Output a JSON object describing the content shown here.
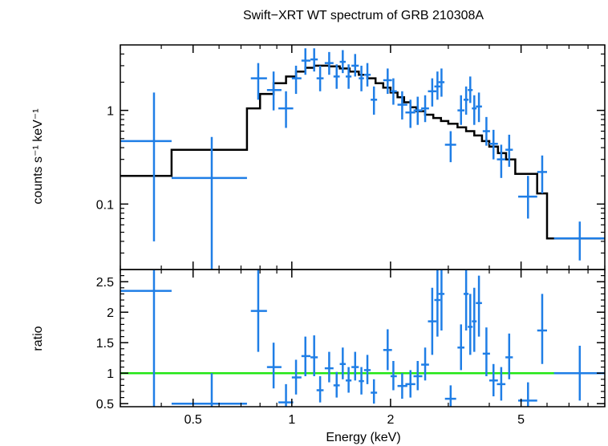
{
  "chart_data": [
    {
      "type": "scatter",
      "panel": "spectrum",
      "title": "Swift−XRT WT spectrum of GRB 210308A",
      "ylabel": "counts s⁻¹ keV⁻¹",
      "xlim": [
        0.3,
        9.0
      ],
      "ylim": [
        0.02,
        5.0
      ],
      "xscale": "log",
      "yscale": "log",
      "y_ticks": [
        0.1,
        1
      ],
      "y_tick_labels": [
        "0.1",
        "1"
      ],
      "colors": {
        "data": "#1f7ee6",
        "model": "#000000"
      },
      "series": [
        {
          "kind": "data",
          "points": [
            {
              "x": 0.38,
              "xlo": 0.3,
              "xhi": 0.43,
              "y": 0.47,
              "ylo": 0.04,
              "yhi": 1.55
            },
            {
              "x": 0.57,
              "xlo": 0.43,
              "xhi": 0.73,
              "y": 0.19,
              "ylo": 0.02,
              "yhi": 0.52
            },
            {
              "x": 0.79,
              "xlo": 0.75,
              "xhi": 0.84,
              "y": 2.2,
              "ylo": 1.3,
              "yhi": 3.2
            },
            {
              "x": 0.88,
              "xlo": 0.84,
              "xhi": 0.93,
              "y": 1.65,
              "ylo": 1.0,
              "yhi": 2.6
            },
            {
              "x": 0.96,
              "xlo": 0.91,
              "xhi": 1.01,
              "y": 1.05,
              "ylo": 0.65,
              "yhi": 1.6
            },
            {
              "x": 1.03,
              "xlo": 1.0,
              "xhi": 1.07,
              "y": 2.2,
              "ylo": 1.5,
              "yhi": 3.0
            },
            {
              "x": 1.1,
              "xlo": 1.07,
              "xhi": 1.14,
              "y": 3.4,
              "ylo": 2.4,
              "yhi": 4.6
            },
            {
              "x": 1.17,
              "xlo": 1.14,
              "xhi": 1.2,
              "y": 3.5,
              "ylo": 2.6,
              "yhi": 4.6
            },
            {
              "x": 1.22,
              "xlo": 1.19,
              "xhi": 1.25,
              "y": 2.2,
              "ylo": 1.6,
              "yhi": 3.0
            },
            {
              "x": 1.3,
              "xlo": 1.26,
              "xhi": 1.34,
              "y": 3.2,
              "ylo": 2.4,
              "yhi": 4.2
            },
            {
              "x": 1.37,
              "xlo": 1.34,
              "xhi": 1.4,
              "y": 2.3,
              "ylo": 1.7,
              "yhi": 3.1
            },
            {
              "x": 1.43,
              "xlo": 1.4,
              "xhi": 1.46,
              "y": 3.3,
              "ylo": 2.5,
              "yhi": 4.4
            },
            {
              "x": 1.49,
              "xlo": 1.46,
              "xhi": 1.52,
              "y": 2.3,
              "ylo": 1.7,
              "yhi": 3.1
            },
            {
              "x": 1.56,
              "xlo": 1.52,
              "xhi": 1.6,
              "y": 3.0,
              "ylo": 2.3,
              "yhi": 4.0
            },
            {
              "x": 1.63,
              "xlo": 1.6,
              "xhi": 1.66,
              "y": 2.2,
              "ylo": 1.6,
              "yhi": 3.0
            },
            {
              "x": 1.7,
              "xlo": 1.66,
              "xhi": 1.74,
              "y": 2.4,
              "ylo": 1.8,
              "yhi": 3.2
            },
            {
              "x": 1.78,
              "xlo": 1.74,
              "xhi": 1.82,
              "y": 1.3,
              "ylo": 0.9,
              "yhi": 1.8
            },
            {
              "x": 1.96,
              "xlo": 1.9,
              "xhi": 2.02,
              "y": 2.1,
              "ylo": 1.5,
              "yhi": 2.8
            },
            {
              "x": 2.04,
              "xlo": 2.0,
              "xhi": 2.09,
              "y": 1.6,
              "ylo": 1.15,
              "yhi": 2.2
            },
            {
              "x": 2.17,
              "xlo": 2.1,
              "xhi": 2.25,
              "y": 1.15,
              "ylo": 0.8,
              "yhi": 1.6
            },
            {
              "x": 2.3,
              "xlo": 2.22,
              "xhi": 2.38,
              "y": 0.95,
              "ylo": 0.65,
              "yhi": 1.3
            },
            {
              "x": 2.42,
              "xlo": 2.35,
              "xhi": 2.5,
              "y": 1.0,
              "ylo": 0.7,
              "yhi": 1.4
            },
            {
              "x": 2.55,
              "xlo": 2.48,
              "xhi": 2.62,
              "y": 1.05,
              "ylo": 0.75,
              "yhi": 1.45
            },
            {
              "x": 2.68,
              "xlo": 2.6,
              "xhi": 2.76,
              "y": 1.6,
              "ylo": 1.1,
              "yhi": 2.2
            },
            {
              "x": 2.78,
              "xlo": 2.72,
              "xhi": 2.84,
              "y": 1.8,
              "ylo": 1.3,
              "yhi": 2.6
            },
            {
              "x": 2.86,
              "xlo": 2.8,
              "xhi": 2.92,
              "y": 2.0,
              "ylo": 1.4,
              "yhi": 2.8
            },
            {
              "x": 3.05,
              "xlo": 2.93,
              "xhi": 3.17,
              "y": 0.43,
              "ylo": 0.28,
              "yhi": 0.6
            },
            {
              "x": 3.28,
              "xlo": 3.2,
              "xhi": 3.36,
              "y": 1.0,
              "ylo": 0.7,
              "yhi": 1.45
            },
            {
              "x": 3.4,
              "xlo": 3.34,
              "xhi": 3.46,
              "y": 1.3,
              "ylo": 0.9,
              "yhi": 1.8
            },
            {
              "x": 3.5,
              "xlo": 3.44,
              "xhi": 3.56,
              "y": 1.65,
              "ylo": 1.2,
              "yhi": 2.3
            },
            {
              "x": 3.6,
              "xlo": 3.54,
              "xhi": 3.66,
              "y": 1.05,
              "ylo": 0.7,
              "yhi": 1.45
            },
            {
              "x": 3.72,
              "xlo": 3.64,
              "xhi": 3.8,
              "y": 1.1,
              "ylo": 0.75,
              "yhi": 1.55
            },
            {
              "x": 3.92,
              "xlo": 3.82,
              "xhi": 4.02,
              "y": 0.6,
              "ylo": 0.42,
              "yhi": 0.85
            },
            {
              "x": 4.12,
              "xlo": 4.0,
              "xhi": 4.25,
              "y": 0.44,
              "ylo": 0.3,
              "yhi": 0.62
            },
            {
              "x": 4.35,
              "xlo": 4.22,
              "xhi": 4.48,
              "y": 0.3,
              "ylo": 0.19,
              "yhi": 0.43
            },
            {
              "x": 4.6,
              "xlo": 4.48,
              "xhi": 4.72,
              "y": 0.38,
              "ylo": 0.25,
              "yhi": 0.55
            },
            {
              "x": 5.25,
              "xlo": 4.9,
              "xhi": 5.6,
              "y": 0.12,
              "ylo": 0.07,
              "yhi": 0.2
            },
            {
              "x": 5.8,
              "xlo": 5.6,
              "xhi": 6.0,
              "y": 0.22,
              "ylo": 0.13,
              "yhi": 0.33
            },
            {
              "x": 7.55,
              "xlo": 6.3,
              "xhi": 9.0,
              "y": 0.043,
              "ylo": 0.025,
              "yhi": 0.065
            }
          ]
        },
        {
          "kind": "model",
          "steps": [
            [
              0.3,
              0.2
            ],
            [
              0.43,
              0.38
            ],
            [
              0.73,
              1.05
            ],
            [
              0.8,
              1.5
            ],
            [
              0.88,
              1.95
            ],
            [
              0.96,
              2.3
            ],
            [
              1.03,
              2.6
            ],
            [
              1.1,
              2.85
            ],
            [
              1.17,
              3.0
            ],
            [
              1.3,
              2.95
            ],
            [
              1.4,
              2.8
            ],
            [
              1.5,
              2.6
            ],
            [
              1.6,
              2.4
            ],
            [
              1.7,
              2.2
            ],
            [
              1.8,
              1.95
            ],
            [
              1.9,
              1.75
            ],
            [
              2.0,
              1.55
            ],
            [
              2.1,
              1.38
            ],
            [
              2.2,
              1.22
            ],
            [
              2.3,
              1.08
            ],
            [
              2.4,
              0.98
            ],
            [
              2.55,
              0.9
            ],
            [
              2.7,
              0.83
            ],
            [
              2.85,
              0.77
            ],
            [
              3.0,
              0.72
            ],
            [
              3.2,
              0.66
            ],
            [
              3.4,
              0.6
            ],
            [
              3.6,
              0.54
            ],
            [
              3.8,
              0.47
            ],
            [
              4.0,
              0.41
            ],
            [
              4.25,
              0.35
            ],
            [
              4.5,
              0.3
            ],
            [
              4.8,
              0.21
            ],
            [
              5.6,
              0.13
            ],
            [
              6.0,
              0.043
            ],
            [
              9.0,
              0.043
            ]
          ]
        }
      ]
    },
    {
      "type": "scatter",
      "panel": "ratio",
      "xlabel": "Energy (keV)",
      "ylabel": "ratio",
      "xlim": [
        0.3,
        9.0
      ],
      "ylim": [
        0.45,
        2.7
      ],
      "xscale": "log",
      "x_ticks": [
        0.5,
        1,
        2,
        5
      ],
      "x_tick_labels": [
        "0.5",
        "1",
        "2",
        "5"
      ],
      "y_ticks": [
        0.5,
        1,
        1.5,
        2,
        2.5
      ],
      "y_tick_labels": [
        "0.5",
        "1",
        "1.5",
        "2",
        "2.5"
      ],
      "reference_line": 1,
      "colors": {
        "data": "#1f7ee6",
        "reference": "#22e614"
      },
      "points": [
        {
          "x": 0.38,
          "xlo": 0.3,
          "xhi": 0.43,
          "y": 2.35,
          "ylo": 0.45,
          "yhi": 2.7
        },
        {
          "x": 0.57,
          "xlo": 0.43,
          "xhi": 0.73,
          "y": 0.5,
          "ylo": 0.45,
          "yhi": 1.0
        },
        {
          "x": 0.79,
          "xlo": 0.75,
          "xhi": 0.84,
          "y": 2.02,
          "ylo": 1.35,
          "yhi": 2.7
        },
        {
          "x": 0.88,
          "xlo": 0.84,
          "xhi": 0.93,
          "y": 1.1,
          "ylo": 0.75,
          "yhi": 1.5
        },
        {
          "x": 0.96,
          "xlo": 0.91,
          "xhi": 1.01,
          "y": 0.52,
          "ylo": 0.45,
          "yhi": 0.82
        },
        {
          "x": 1.03,
          "xlo": 1.0,
          "xhi": 1.07,
          "y": 0.93,
          "ylo": 0.65,
          "yhi": 1.22
        },
        {
          "x": 1.1,
          "xlo": 1.07,
          "xhi": 1.14,
          "y": 1.28,
          "ylo": 0.95,
          "yhi": 1.6
        },
        {
          "x": 1.17,
          "xlo": 1.14,
          "xhi": 1.2,
          "y": 1.26,
          "ylo": 0.95,
          "yhi": 1.62
        },
        {
          "x": 1.22,
          "xlo": 1.19,
          "xhi": 1.25,
          "y": 0.72,
          "ylo": 0.52,
          "yhi": 0.95
        },
        {
          "x": 1.3,
          "xlo": 1.26,
          "xhi": 1.34,
          "y": 1.08,
          "ylo": 0.85,
          "yhi": 1.35
        },
        {
          "x": 1.37,
          "xlo": 1.34,
          "xhi": 1.4,
          "y": 0.8,
          "ylo": 0.6,
          "yhi": 1.02
        },
        {
          "x": 1.43,
          "xlo": 1.4,
          "xhi": 1.46,
          "y": 1.15,
          "ylo": 0.9,
          "yhi": 1.42
        },
        {
          "x": 1.49,
          "xlo": 1.46,
          "xhi": 1.52,
          "y": 0.88,
          "ylo": 0.68,
          "yhi": 1.1
        },
        {
          "x": 1.56,
          "xlo": 1.52,
          "xhi": 1.6,
          "y": 1.1,
          "ylo": 0.88,
          "yhi": 1.35
        },
        {
          "x": 1.63,
          "xlo": 1.6,
          "xhi": 1.66,
          "y": 0.87,
          "ylo": 0.65,
          "yhi": 1.1
        },
        {
          "x": 1.7,
          "xlo": 1.66,
          "xhi": 1.74,
          "y": 1.05,
          "ylo": 0.82,
          "yhi": 1.3
        },
        {
          "x": 1.78,
          "xlo": 1.74,
          "xhi": 1.82,
          "y": 0.68,
          "ylo": 0.5,
          "yhi": 0.9
        },
        {
          "x": 1.96,
          "xlo": 1.9,
          "xhi": 2.02,
          "y": 1.38,
          "ylo": 1.05,
          "yhi": 1.72
        },
        {
          "x": 2.04,
          "xlo": 2.0,
          "xhi": 2.09,
          "y": 0.95,
          "ylo": 0.72,
          "yhi": 1.2
        },
        {
          "x": 2.17,
          "xlo": 2.1,
          "xhi": 2.25,
          "y": 0.79,
          "ylo": 0.58,
          "yhi": 1.0
        },
        {
          "x": 2.3,
          "xlo": 2.22,
          "xhi": 2.38,
          "y": 0.82,
          "ylo": 0.6,
          "yhi": 1.05
        },
        {
          "x": 2.42,
          "xlo": 2.35,
          "xhi": 2.5,
          "y": 0.95,
          "ylo": 0.72,
          "yhi": 1.2
        },
        {
          "x": 2.55,
          "xlo": 2.48,
          "xhi": 2.62,
          "y": 1.14,
          "ylo": 0.88,
          "yhi": 1.42
        },
        {
          "x": 2.68,
          "xlo": 2.6,
          "xhi": 2.76,
          "y": 1.85,
          "ylo": 1.3,
          "yhi": 2.4
        },
        {
          "x": 2.78,
          "xlo": 2.72,
          "xhi": 2.84,
          "y": 2.2,
          "ylo": 1.6,
          "yhi": 2.7
        },
        {
          "x": 2.86,
          "xlo": 2.8,
          "xhi": 2.92,
          "y": 2.3,
          "ylo": 1.7,
          "yhi": 2.7
        },
        {
          "x": 3.05,
          "xlo": 2.93,
          "xhi": 3.17,
          "y": 0.58,
          "ylo": 0.45,
          "yhi": 0.8
        },
        {
          "x": 3.28,
          "xlo": 3.2,
          "xhi": 3.36,
          "y": 1.42,
          "ylo": 1.05,
          "yhi": 1.8
        },
        {
          "x": 3.4,
          "xlo": 3.34,
          "xhi": 3.46,
          "y": 2.3,
          "ylo": 1.7,
          "yhi": 2.7
        },
        {
          "x": 3.5,
          "xlo": 3.44,
          "xhi": 3.56,
          "y": 1.76,
          "ylo": 1.3,
          "yhi": 2.3
        },
        {
          "x": 3.6,
          "xlo": 3.54,
          "xhi": 3.66,
          "y": 1.85,
          "ylo": 1.35,
          "yhi": 2.4
        },
        {
          "x": 3.72,
          "xlo": 3.64,
          "xhi": 3.8,
          "y": 2.15,
          "ylo": 1.6,
          "yhi": 2.6
        },
        {
          "x": 3.92,
          "xlo": 3.82,
          "xhi": 4.02,
          "y": 1.32,
          "ylo": 0.95,
          "yhi": 1.75
        },
        {
          "x": 4.12,
          "xlo": 4.0,
          "xhi": 4.25,
          "y": 0.88,
          "ylo": 0.62,
          "yhi": 1.15
        },
        {
          "x": 4.35,
          "xlo": 4.22,
          "xhi": 4.48,
          "y": 0.82,
          "ylo": 0.55,
          "yhi": 1.1
        },
        {
          "x": 4.6,
          "xlo": 4.48,
          "xhi": 4.72,
          "y": 1.26,
          "ylo": 0.9,
          "yhi": 1.65
        },
        {
          "x": 5.25,
          "xlo": 4.9,
          "xhi": 5.6,
          "y": 0.55,
          "ylo": 0.45,
          "yhi": 0.85
        },
        {
          "x": 5.8,
          "xlo": 5.6,
          "xhi": 6.0,
          "y": 1.7,
          "ylo": 1.15,
          "yhi": 2.3
        },
        {
          "x": 7.55,
          "xlo": 6.3,
          "xhi": 9.0,
          "y": 1.0,
          "ylo": 0.55,
          "yhi": 1.45
        }
      ]
    }
  ]
}
